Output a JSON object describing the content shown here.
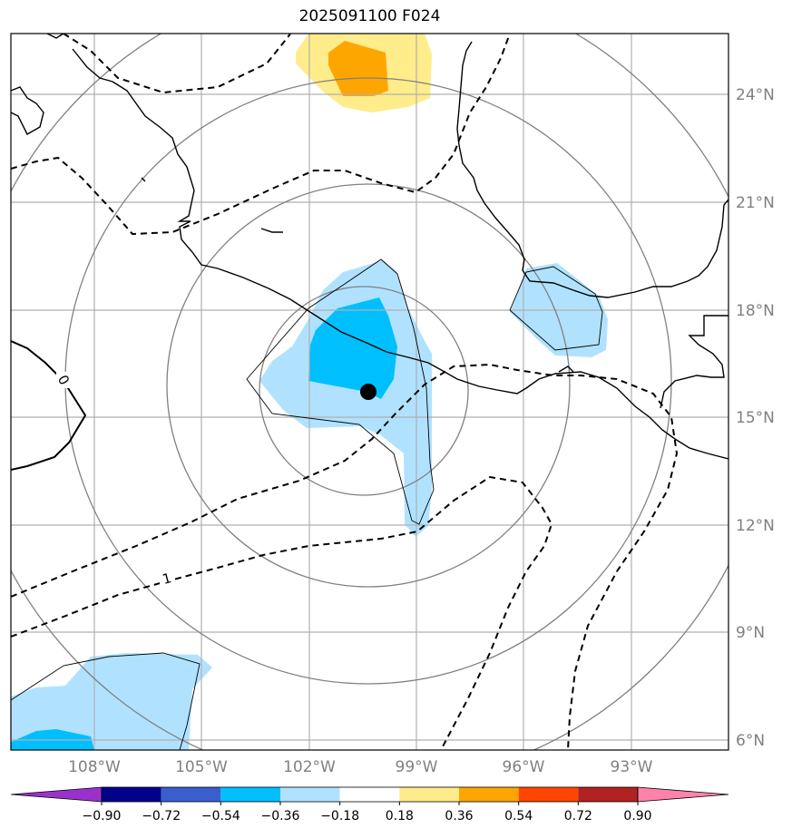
{
  "title": "2025091100 F024",
  "map": {
    "lat_labels": [
      "24°N",
      "21°N",
      "18°N",
      "15°N",
      "12°N",
      "9°N",
      "6°N"
    ],
    "lon_labels": [
      "108°W",
      "105°W",
      "102°W",
      "99°W",
      "96°W",
      "93°W"
    ],
    "contour_labels": [
      "0",
      "1"
    ],
    "center_marker": "storm-center"
  },
  "colorbar": {
    "levels": [
      "−0.90",
      "−0.72",
      "−0.54",
      "−0.36",
      "−0.18",
      "0.18",
      "0.36",
      "0.54",
      "0.72",
      "0.90"
    ],
    "colors": [
      "#9932cc",
      "#00008b",
      "#3a5fcd",
      "#00bfff",
      "#b0e2ff",
      "#ffffff",
      "#ffec8b",
      "#ffa500",
      "#ff4500",
      "#b22222",
      "#ff82ab"
    ]
  }
}
